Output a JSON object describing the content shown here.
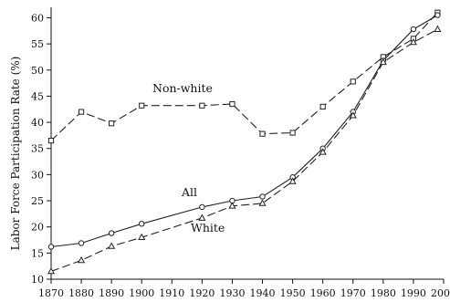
{
  "chart_data": {
    "type": "line",
    "title": "",
    "xlabel": "",
    "ylabel": "Labor Force Participation Rate (%)",
    "xlim": [
      1870,
      2000
    ],
    "ylim": [
      10,
      62
    ],
    "xticks": [
      "1870",
      "1880",
      "1890",
      "1900",
      "1910",
      "1920",
      "1930",
      "1940",
      "1950",
      "1960",
      "1970",
      "1980",
      "1990",
      "2000"
    ],
    "yticks": [
      "10",
      "15",
      "20",
      "25",
      "30",
      "35",
      "40",
      "45",
      "50",
      "55",
      "60"
    ],
    "grid": false,
    "legend": "none",
    "series": [
      {
        "name": "Non-white",
        "marker": "square",
        "dash": "dashed",
        "x": [
          1870,
          1880,
          1890,
          1900,
          1920,
          1930,
          1940,
          1950,
          1960,
          1970,
          1980,
          1990,
          1998
        ],
        "values": [
          36.5,
          42.0,
          39.8,
          43.2,
          43.2,
          43.5,
          37.8,
          38.0,
          43.0,
          47.8,
          52.5,
          56.0,
          61.0
        ]
      },
      {
        "name": "All",
        "marker": "circle",
        "dash": "solid",
        "x": [
          1870,
          1880,
          1890,
          1900,
          1920,
          1930,
          1940,
          1950,
          1960,
          1970,
          1980,
          1990,
          1998
        ],
        "values": [
          16.2,
          16.9,
          18.8,
          20.6,
          23.8,
          25.0,
          25.8,
          29.5,
          35.0,
          42.0,
          51.8,
          57.8,
          60.5
        ]
      },
      {
        "name": "White",
        "marker": "triangle",
        "dash": "dashed",
        "x": [
          1870,
          1880,
          1890,
          1900,
          1920,
          1930,
          1940,
          1950,
          1960,
          1970,
          1980,
          1990,
          1998
        ],
        "values": [
          11.5,
          13.6,
          16.3,
          18.0,
          21.7,
          24.0,
          24.5,
          28.7,
          34.3,
          41.3,
          51.5,
          55.3,
          57.8
        ]
      }
    ]
  }
}
